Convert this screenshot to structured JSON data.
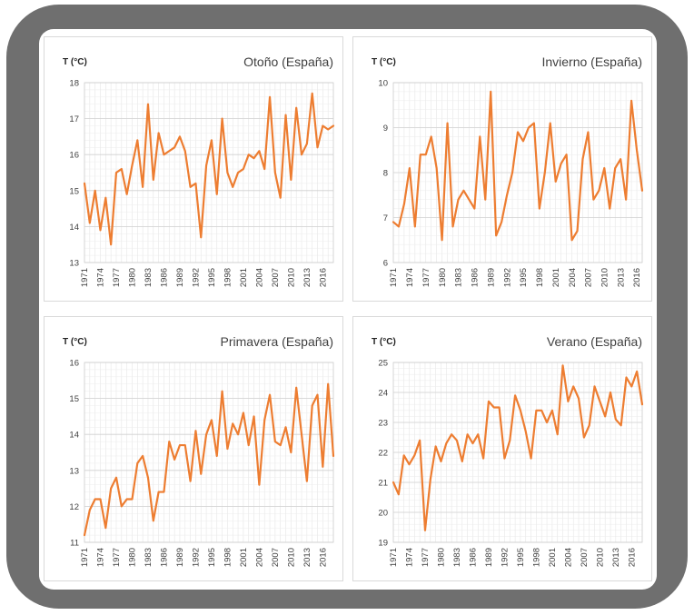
{
  "accent": "#ED7D31",
  "chart_data": [
    {
      "type": "line",
      "title": "Otoño (España)",
      "ylabel": "T (°C)",
      "xlabel": "",
      "ylim": [
        13,
        18
      ],
      "yticks": [
        13,
        14,
        15,
        16,
        17,
        18
      ],
      "x_start": 1971,
      "xtick_labels": [
        "1971",
        "1974",
        "1977",
        "1980",
        "1983",
        "1986",
        "1989",
        "1992",
        "1995",
        "1998",
        "2001",
        "2004",
        "2007",
        "2010",
        "2013",
        "2016"
      ],
      "grid": true,
      "series": [
        {
          "color": "#ED7D31",
          "values": [
            15.2,
            14.1,
            15.0,
            13.9,
            14.8,
            13.5,
            15.5,
            15.6,
            14.9,
            15.7,
            16.4,
            15.1,
            17.4,
            15.3,
            16.6,
            16.0,
            16.1,
            16.2,
            16.5,
            16.1,
            15.1,
            15.2,
            13.7,
            15.7,
            16.4,
            14.9,
            17.0,
            15.5,
            15.1,
            15.5,
            15.6,
            16.0,
            15.9,
            16.1,
            15.6,
            17.6,
            15.5,
            14.8,
            17.1,
            15.3,
            17.3,
            16.0,
            16.3,
            17.7,
            16.2,
            16.8,
            16.7,
            16.8
          ]
        }
      ]
    },
    {
      "type": "line",
      "title": "Invierno (España)",
      "ylabel": "T (°C)",
      "xlabel": "",
      "ylim": [
        6,
        10
      ],
      "yticks": [
        6,
        7,
        8,
        9,
        10
      ],
      "x_start": 1971,
      "xtick_labels": [
        "1971",
        "1974",
        "1977",
        "1980",
        "1983",
        "1986",
        "1989",
        "1992",
        "1995",
        "1998",
        "2001",
        "2004",
        "2007",
        "2010",
        "2013",
        "2016"
      ],
      "grid": true,
      "series": [
        {
          "color": "#ED7D31",
          "values": [
            6.9,
            6.8,
            7.3,
            8.1,
            6.8,
            8.4,
            8.4,
            8.8,
            8.1,
            6.5,
            9.1,
            6.8,
            7.4,
            7.6,
            7.4,
            7.2,
            8.8,
            7.4,
            9.8,
            6.6,
            6.9,
            7.5,
            8.0,
            8.9,
            8.7,
            9.0,
            9.1,
            7.2,
            8.0,
            9.1,
            7.8,
            8.2,
            8.4,
            6.5,
            6.7,
            8.3,
            8.9,
            7.4,
            7.6,
            8.1,
            7.2,
            8.1,
            8.3,
            7.4,
            9.6,
            8.5,
            7.6
          ]
        }
      ]
    },
    {
      "type": "line",
      "title": "Primavera (España)",
      "ylabel": "T (°C)",
      "xlabel": "",
      "ylim": [
        11,
        16
      ],
      "yticks": [
        11,
        12,
        13,
        14,
        15,
        16
      ],
      "x_start": 1971,
      "xtick_labels": [
        "1971",
        "1974",
        "1977",
        "1980",
        "1983",
        "1986",
        "1989",
        "1992",
        "1995",
        "1998",
        "2001",
        "2004",
        "2007",
        "2010",
        "2013",
        "2016"
      ],
      "grid": true,
      "series": [
        {
          "color": "#ED7D31",
          "values": [
            11.2,
            11.9,
            12.2,
            12.2,
            11.4,
            12.5,
            12.8,
            12.0,
            12.2,
            12.2,
            13.2,
            13.4,
            12.8,
            11.6,
            12.4,
            12.4,
            13.8,
            13.3,
            13.7,
            13.7,
            12.7,
            14.1,
            12.9,
            14.0,
            14.4,
            13.4,
            15.2,
            13.6,
            14.3,
            14.0,
            14.6,
            13.7,
            14.5,
            12.6,
            14.4,
            15.1,
            13.8,
            13.7,
            14.2,
            13.5,
            15.3,
            14.0,
            12.7,
            14.8,
            15.1,
            13.1,
            15.4,
            13.4
          ]
        }
      ]
    },
    {
      "type": "line",
      "title": "Verano (España)",
      "ylabel": "T (°C)",
      "xlabel": "",
      "ylim": [
        19,
        25
      ],
      "yticks": [
        19,
        20,
        21,
        22,
        23,
        24,
        25
      ],
      "x_start": 1971,
      "xtick_labels": [
        "1971",
        "1974",
        "1977",
        "1980",
        "1983",
        "1986",
        "1989",
        "1992",
        "1995",
        "1998",
        "2001",
        "2004",
        "2007",
        "2010",
        "2013",
        "2016"
      ],
      "grid": true,
      "series": [
        {
          "color": "#ED7D31",
          "values": [
            21.0,
            20.6,
            21.9,
            21.6,
            21.9,
            22.4,
            19.4,
            21.1,
            22.2,
            21.7,
            22.3,
            22.6,
            22.4,
            21.7,
            22.6,
            22.3,
            22.6,
            21.8,
            23.7,
            23.5,
            23.5,
            21.8,
            22.4,
            23.9,
            23.4,
            22.7,
            21.8,
            23.4,
            23.4,
            23.0,
            23.4,
            22.6,
            24.9,
            23.7,
            24.2,
            23.8,
            22.5,
            22.9,
            24.2,
            23.7,
            23.2,
            24.0,
            23.1,
            22.9,
            24.5,
            24.2,
            24.7,
            23.6
          ]
        }
      ]
    }
  ]
}
